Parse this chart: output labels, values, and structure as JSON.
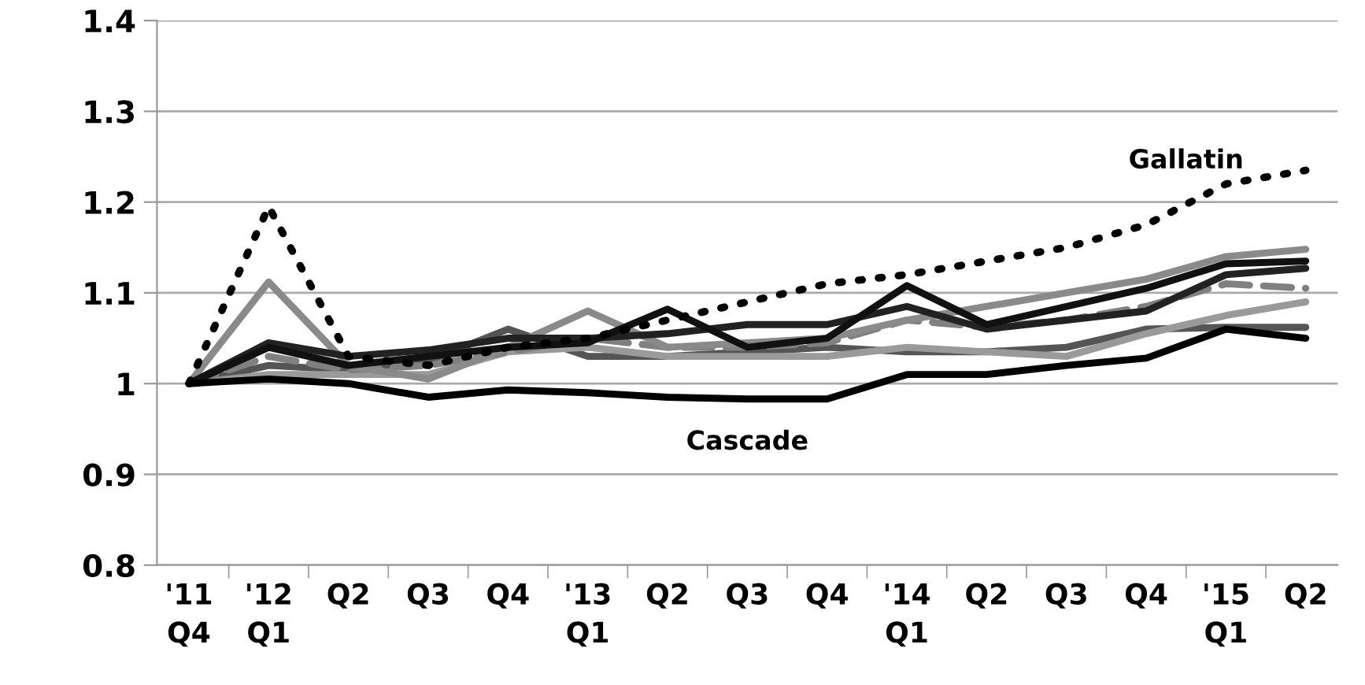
{
  "chart_data": {
    "type": "line",
    "categories": [
      "'11\nQ4",
      "'12\nQ1",
      "Q2",
      "Q3",
      "Q4",
      "'13\nQ1",
      "Q2",
      "Q3",
      "Q4",
      "'14\nQ1",
      "Q2",
      "Q3",
      "Q4",
      "'15\nQ1",
      "Q2"
    ],
    "ylim": [
      0.8,
      1.4
    ],
    "yticks": [
      0.8,
      0.9,
      1,
      1.1,
      1.2,
      1.3,
      1.4
    ],
    "grid": "y",
    "series": [
      {
        "color": "#555555",
        "values": [
          1.0,
          1.02,
          1.015,
          1.025,
          1.06,
          1.03,
          1.03,
          1.035,
          1.04,
          1.035,
          1.035,
          1.04,
          1.06,
          1.062,
          1.062
        ]
      },
      {
        "color": "#9a9a9a",
        "values": [
          1.0,
          1.01,
          1.01,
          1.01,
          1.035,
          1.04,
          1.03,
          1.03,
          1.03,
          1.04,
          1.035,
          1.03,
          1.055,
          1.075,
          1.09
        ]
      },
      {
        "color": "#808080",
        "line_style": "dashed",
        "values": [
          1.0,
          1.03,
          1.015,
          1.02,
          1.035,
          1.05,
          1.04,
          1.04,
          1.045,
          1.07,
          1.062,
          1.07,
          1.085,
          1.11,
          1.105
        ]
      },
      {
        "color": "#8a8a8a",
        "values": [
          1.0,
          1.112,
          1.02,
          1.005,
          1.04,
          1.08,
          1.04,
          1.045,
          1.05,
          1.07,
          1.085,
          1.1,
          1.115,
          1.14,
          1.148
        ]
      },
      {
        "color": "#222222",
        "values": [
          1.0,
          1.045,
          1.03,
          1.037,
          1.05,
          1.05,
          1.055,
          1.065,
          1.065,
          1.085,
          1.06,
          1.07,
          1.08,
          1.12,
          1.127
        ]
      },
      {
        "color": "#111111",
        "values": [
          1.0,
          1.04,
          1.02,
          1.03,
          1.04,
          1.045,
          1.082,
          1.04,
          1.05,
          1.108,
          1.065,
          1.085,
          1.105,
          1.132,
          1.135
        ]
      },
      {
        "name": "Cascade",
        "color": "#000000",
        "values": [
          1.0,
          1.005,
          1.0,
          0.985,
          0.993,
          0.99,
          0.985,
          0.983,
          0.983,
          1.01,
          1.01,
          1.02,
          1.028,
          1.06,
          1.05
        ]
      },
      {
        "name": "Gallatin",
        "color": "#000000",
        "line_style": "dotted",
        "values": [
          1.0,
          1.195,
          1.03,
          1.02,
          1.04,
          1.05,
          1.07,
          1.09,
          1.11,
          1.12,
          1.135,
          1.15,
          1.175,
          1.22,
          1.235
        ]
      }
    ]
  }
}
